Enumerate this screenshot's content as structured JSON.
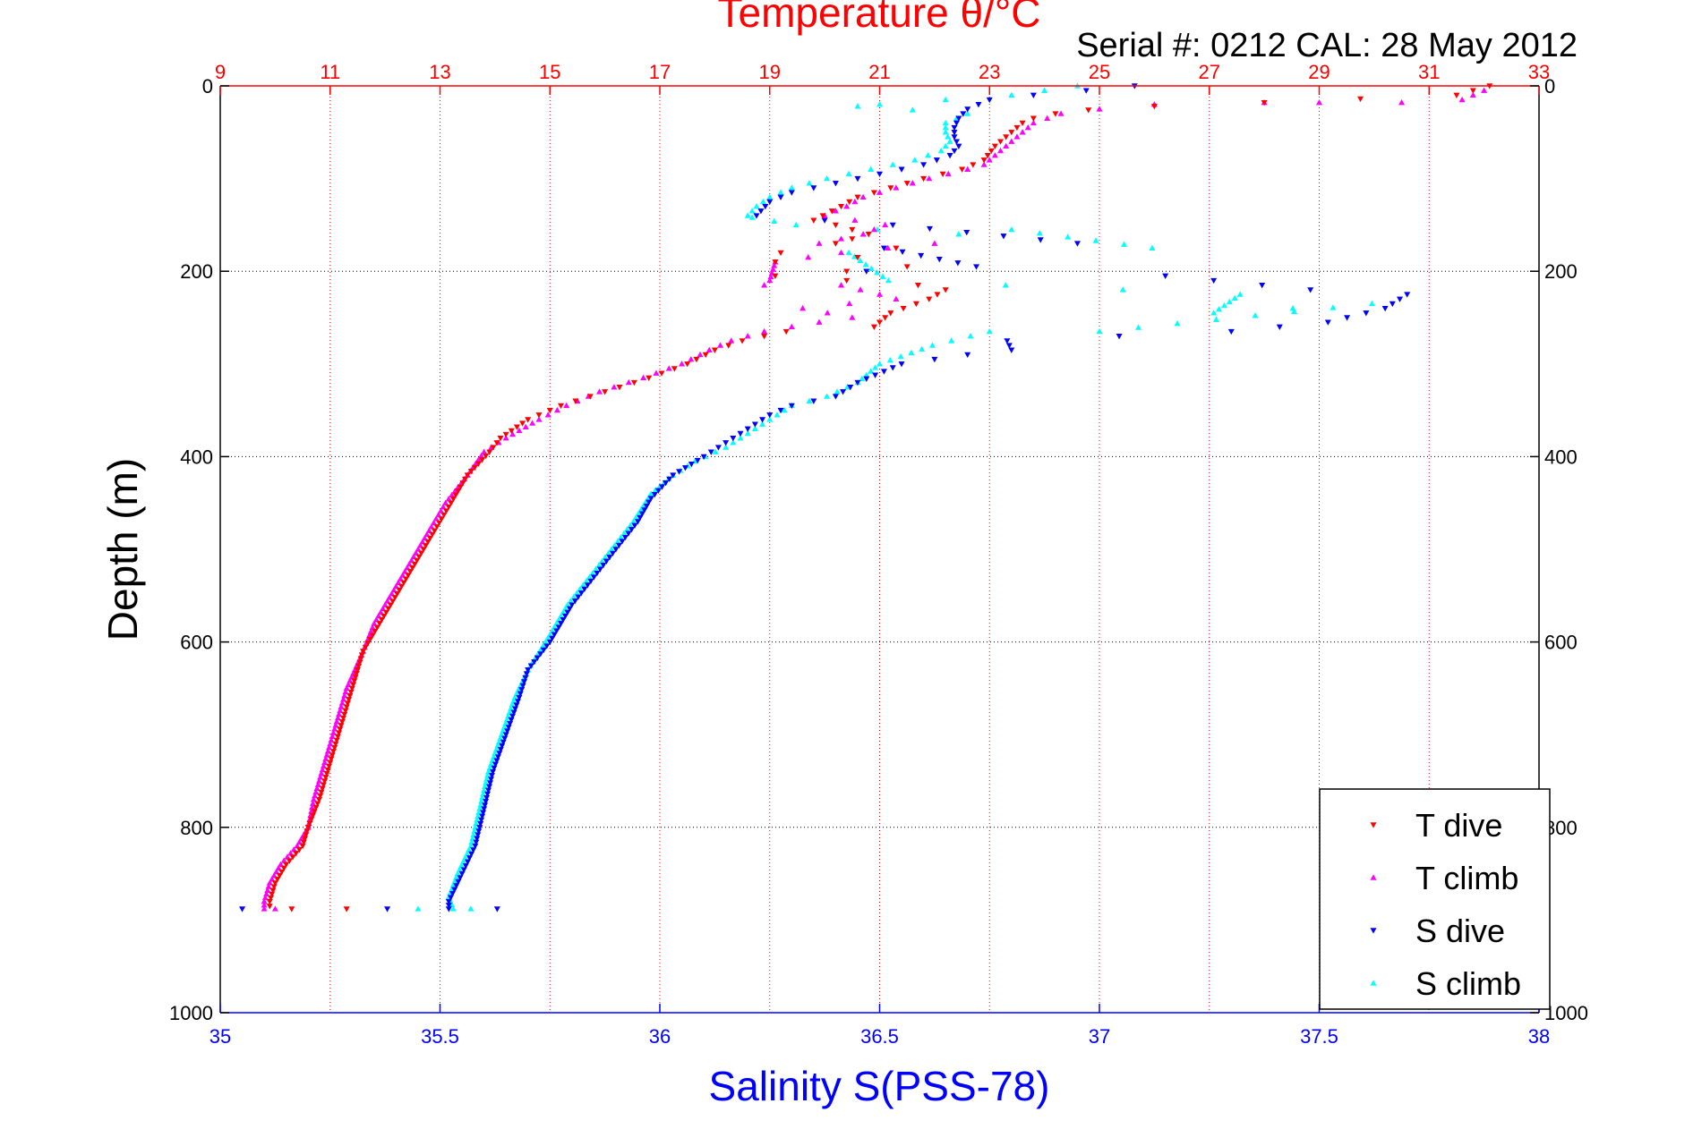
{
  "chart_data": {
    "type": "scatter",
    "title": "Temperature θ/°C",
    "subtitle": "Serial #: 0212  CAL: 28 May 2012",
    "xlabel": "Salinity S(PSS-78)",
    "ylabel": "Depth (m)",
    "salinity_axis": {
      "range": [
        35,
        38
      ],
      "ticks": [
        "35",
        "35.5",
        "36",
        "36.5",
        "37",
        "37.5",
        "38"
      ],
      "color": "#0000ff"
    },
    "temperature_axis": {
      "range": [
        9,
        33
      ],
      "ticks": [
        "9",
        "11",
        "13",
        "15",
        "17",
        "19",
        "21",
        "23",
        "25",
        "27",
        "29",
        "31",
        "33"
      ],
      "color": "#ff0000"
    },
    "depth_axis": {
      "range": [
        0,
        1000
      ],
      "reversed": true,
      "ticks": [
        "0",
        "200",
        "400",
        "600",
        "800",
        "1000"
      ]
    },
    "grid": true,
    "legend_position": "bottom-right",
    "series": [
      {
        "name": "T dive",
        "variable": "temperature",
        "color": "#ff0000",
        "marker": "triangle-down",
        "points": [
          [
            32.1,
            0
          ],
          [
            31.5,
            10
          ],
          [
            28.0,
            18
          ],
          [
            26.0,
            22
          ],
          [
            24.8,
            26
          ],
          [
            24.2,
            30
          ],
          [
            23.8,
            35
          ],
          [
            23.6,
            40
          ],
          [
            23.4,
            50
          ],
          [
            23.1,
            65
          ],
          [
            22.9,
            80
          ],
          [
            22.5,
            90
          ],
          [
            21.8,
            100
          ],
          [
            21.2,
            110
          ],
          [
            20.6,
            120
          ],
          [
            20.3,
            130
          ],
          [
            19.8,
            145
          ],
          [
            20.2,
            150
          ],
          [
            20.8,
            160
          ],
          [
            20.2,
            170
          ],
          [
            21.3,
            175
          ],
          [
            19.2,
            180
          ],
          [
            20.6,
            185
          ],
          [
            19.1,
            190
          ],
          [
            21.5,
            195
          ],
          [
            20.4,
            200
          ],
          [
            19.1,
            205
          ],
          [
            21.7,
            215
          ],
          [
            22.2,
            220
          ],
          [
            21.9,
            230
          ],
          [
            21.2,
            245
          ],
          [
            20.9,
            260
          ],
          [
            19.3,
            265
          ],
          [
            18.5,
            275
          ],
          [
            18.0,
            285
          ],
          [
            17.5,
            300
          ],
          [
            16.8,
            315
          ],
          [
            16.0,
            330
          ],
          [
            15.2,
            345
          ],
          [
            14.6,
            360
          ],
          [
            14.1,
            380
          ],
          [
            13.9,
            395
          ],
          [
            13.5,
            420
          ],
          [
            13.2,
            450
          ],
          [
            12.9,
            480
          ],
          [
            12.7,
            500
          ],
          [
            12.3,
            540
          ],
          [
            11.9,
            580
          ],
          [
            11.6,
            610
          ],
          [
            11.4,
            650
          ],
          [
            11.2,
            690
          ],
          [
            11.0,
            730
          ],
          [
            10.8,
            770
          ],
          [
            10.6,
            800
          ],
          [
            10.5,
            820
          ],
          [
            10.2,
            840
          ],
          [
            10.0,
            860
          ],
          [
            9.9,
            880
          ],
          [
            9.9,
            885
          ],
          [
            10.3,
            888
          ],
          [
            11.3,
            888
          ]
        ]
      },
      {
        "name": "T climb",
        "variable": "temperature",
        "color": "#ff00ff",
        "marker": "triangle-up",
        "points": [
          [
            32.0,
            5
          ],
          [
            31.6,
            15
          ],
          [
            30.5,
            18
          ],
          [
            29.0,
            18
          ],
          [
            28.0,
            18
          ],
          [
            26.0,
            20
          ],
          [
            25.0,
            25
          ],
          [
            24.3,
            30
          ],
          [
            23.8,
            40
          ],
          [
            23.5,
            55
          ],
          [
            23.2,
            70
          ],
          [
            22.9,
            85
          ],
          [
            22.6,
            90
          ],
          [
            21.9,
            100
          ],
          [
            21.3,
            110
          ],
          [
            20.7,
            120
          ],
          [
            20.4,
            130
          ],
          [
            20.0,
            140
          ],
          [
            21.1,
            150
          ],
          [
            20.7,
            160
          ],
          [
            19.9,
            170
          ],
          [
            22.0,
            170
          ],
          [
            20.3,
            180
          ],
          [
            19.1,
            190
          ],
          [
            19.0,
            210
          ],
          [
            18.9,
            215
          ],
          [
            20.3,
            215
          ],
          [
            21.0,
            225
          ],
          [
            21.3,
            230
          ],
          [
            19.6,
            240
          ],
          [
            20.5,
            250
          ],
          [
            19.9,
            255
          ],
          [
            18.9,
            265
          ],
          [
            18.3,
            275
          ],
          [
            17.9,
            285
          ],
          [
            17.4,
            300
          ],
          [
            16.7,
            315
          ],
          [
            15.9,
            330
          ],
          [
            15.3,
            345
          ],
          [
            14.8,
            360
          ],
          [
            14.2,
            380
          ],
          [
            13.8,
            395
          ],
          [
            13.5,
            420
          ],
          [
            13.1,
            450
          ],
          [
            12.8,
            480
          ],
          [
            12.6,
            500
          ],
          [
            12.2,
            540
          ],
          [
            11.8,
            580
          ],
          [
            11.6,
            610
          ],
          [
            11.3,
            650
          ],
          [
            11.1,
            690
          ],
          [
            10.9,
            730
          ],
          [
            10.7,
            770
          ],
          [
            10.6,
            800
          ],
          [
            10.4,
            820
          ],
          [
            10.1,
            840
          ],
          [
            9.9,
            860
          ],
          [
            9.8,
            880
          ],
          [
            9.8,
            888
          ],
          [
            10.0,
            888
          ]
        ]
      },
      {
        "name": "S dive",
        "variable": "salinity",
        "color": "#0000ff",
        "marker": "triangle-down",
        "points": [
          [
            37.08,
            0
          ],
          [
            36.97,
            5
          ],
          [
            36.85,
            10
          ],
          [
            36.75,
            15
          ],
          [
            36.7,
            25
          ],
          [
            36.68,
            35
          ],
          [
            36.67,
            45
          ],
          [
            36.67,
            55
          ],
          [
            36.68,
            65
          ],
          [
            36.66,
            75
          ],
          [
            36.6,
            85
          ],
          [
            36.5,
            95
          ],
          [
            36.4,
            105
          ],
          [
            36.3,
            115
          ],
          [
            36.25,
            125
          ],
          [
            36.23,
            135
          ],
          [
            36.22,
            140
          ],
          [
            36.53,
            150
          ],
          [
            36.95,
            170
          ],
          [
            36.51,
            175
          ],
          [
            36.72,
            195
          ],
          [
            36.47,
            200
          ],
          [
            37.15,
            205
          ],
          [
            37.48,
            220
          ],
          [
            37.7,
            225
          ],
          [
            37.65,
            240
          ],
          [
            37.52,
            255
          ],
          [
            37.3,
            265
          ],
          [
            36.79,
            275
          ],
          [
            36.8,
            285
          ],
          [
            36.7,
            290
          ],
          [
            36.55,
            300
          ],
          [
            36.45,
            320
          ],
          [
            36.4,
            335
          ],
          [
            36.3,
            345
          ],
          [
            36.25,
            355
          ],
          [
            36.2,
            370
          ],
          [
            36.15,
            385
          ],
          [
            36.1,
            400
          ],
          [
            36.03,
            420
          ],
          [
            35.98,
            445
          ],
          [
            35.95,
            470
          ],
          [
            35.9,
            500
          ],
          [
            35.85,
            530
          ],
          [
            35.8,
            560
          ],
          [
            35.75,
            600
          ],
          [
            35.7,
            630
          ],
          [
            35.68,
            660
          ],
          [
            35.65,
            700
          ],
          [
            35.62,
            740
          ],
          [
            35.6,
            780
          ],
          [
            35.58,
            820
          ],
          [
            35.55,
            850
          ],
          [
            35.52,
            880
          ],
          [
            35.52,
            888
          ],
          [
            35.05,
            888
          ],
          [
            35.38,
            888
          ],
          [
            35.63,
            888
          ]
        ]
      },
      {
        "name": "S climb",
        "variable": "salinity",
        "color": "#00ffff",
        "marker": "triangle-up",
        "points": [
          [
            36.95,
            0
          ],
          [
            36.8,
            10
          ],
          [
            36.5,
            20
          ],
          [
            36.45,
            22
          ],
          [
            36.7,
            30
          ],
          [
            36.65,
            40
          ],
          [
            36.65,
            50
          ],
          [
            36.66,
            60
          ],
          [
            36.64,
            70
          ],
          [
            36.58,
            80
          ],
          [
            36.48,
            90
          ],
          [
            36.38,
            100
          ],
          [
            36.3,
            110
          ],
          [
            36.25,
            120
          ],
          [
            36.22,
            130
          ],
          [
            36.2,
            140
          ],
          [
            36.21,
            142
          ],
          [
            36.31,
            150
          ],
          [
            36.68,
            160
          ],
          [
            36.8,
            155
          ],
          [
            37.12,
            175
          ],
          [
            36.43,
            180
          ],
          [
            36.52,
            210
          ],
          [
            37.32,
            225
          ],
          [
            37.26,
            245
          ],
          [
            37.62,
            235
          ],
          [
            37.0,
            265
          ],
          [
            36.75,
            265
          ],
          [
            36.62,
            280
          ],
          [
            36.5,
            300
          ],
          [
            36.45,
            320
          ],
          [
            36.38,
            335
          ],
          [
            36.3,
            345
          ],
          [
            36.25,
            360
          ],
          [
            36.2,
            375
          ],
          [
            36.15,
            390
          ],
          [
            36.08,
            405
          ],
          [
            36.03,
            420
          ],
          [
            35.98,
            440
          ],
          [
            35.94,
            470
          ],
          [
            35.89,
            500
          ],
          [
            35.84,
            530
          ],
          [
            35.79,
            560
          ],
          [
            35.74,
            600
          ],
          [
            35.7,
            630
          ],
          [
            35.67,
            660
          ],
          [
            35.64,
            700
          ],
          [
            35.61,
            740
          ],
          [
            35.59,
            780
          ],
          [
            35.57,
            820
          ],
          [
            35.54,
            850
          ],
          [
            35.52,
            875
          ],
          [
            35.53,
            888
          ],
          [
            35.45,
            888
          ],
          [
            35.57,
            888
          ]
        ]
      }
    ]
  }
}
